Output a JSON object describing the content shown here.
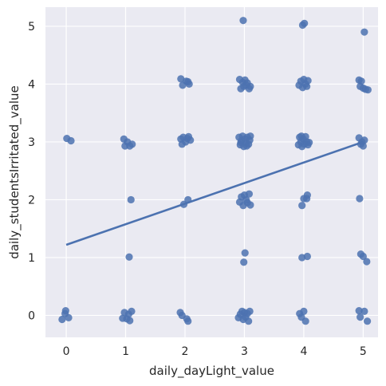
{
  "chart_data": {
    "type": "scatter",
    "xlabel": "daily_dayLight_value",
    "ylabel": "daily_studentsIrritated_value",
    "xlim": [
      -0.35,
      5.25
    ],
    "ylim": [
      -0.38,
      5.33
    ],
    "x_ticks": [
      "0",
      "1",
      "2",
      "3",
      "4",
      "5"
    ],
    "y_ticks": [
      "0",
      "1",
      "2",
      "3",
      "4",
      "5"
    ],
    "grid": true,
    "background": "#eaeaf2",
    "grid_color": "#ffffff",
    "point_color": "#4c72b0",
    "line_color": "#4c72b0",
    "regression_line": {
      "x": [
        0,
        5
      ],
      "y": [
        1.22,
        3.0
      ]
    },
    "points": [
      {
        "x": -0.07,
        "y": -0.07
      },
      {
        "x": -0.02,
        "y": 0.03
      },
      {
        "x": -0.01,
        "y": 0.08
      },
      {
        "x": 0.04,
        "y": -0.04
      },
      {
        "x": 0.01,
        "y": 3.06
      },
      {
        "x": 0.08,
        "y": 3.02
      },
      {
        "x": 0.95,
        "y": -0.05
      },
      {
        "x": 0.98,
        "y": 0.05
      },
      {
        "x": 1.02,
        "y": -0.06
      },
      {
        "x": 1.05,
        "y": 0.02
      },
      {
        "x": 1.07,
        "y": -0.09
      },
      {
        "x": 1.1,
        "y": 0.07
      },
      {
        "x": 1.06,
        "y": 1.01
      },
      {
        "x": 1.09,
        "y": 2.0
      },
      {
        "x": 0.97,
        "y": 3.05
      },
      {
        "x": 0.99,
        "y": 2.93
      },
      {
        "x": 1.03,
        "y": 3.0
      },
      {
        "x": 1.07,
        "y": 2.93
      },
      {
        "x": 1.11,
        "y": 2.96
      },
      {
        "x": 1.92,
        "y": 0.05
      },
      {
        "x": 1.95,
        "y": 0.0
      },
      {
        "x": 2.03,
        "y": -0.06
      },
      {
        "x": 2.05,
        "y": -0.1
      },
      {
        "x": 1.98,
        "y": 1.92
      },
      {
        "x": 2.05,
        "y": 2.0
      },
      {
        "x": 1.93,
        "y": 3.05
      },
      {
        "x": 1.95,
        "y": 2.96
      },
      {
        "x": 1.97,
        "y": 3.08
      },
      {
        "x": 2.01,
        "y": 3.0
      },
      {
        "x": 2.04,
        "y": 3.06
      },
      {
        "x": 2.06,
        "y": 3.09
      },
      {
        "x": 2.09,
        "y": 3.03
      },
      {
        "x": 1.93,
        "y": 4.09
      },
      {
        "x": 1.96,
        "y": 3.98
      },
      {
        "x": 2.02,
        "y": 4.05
      },
      {
        "x": 2.05,
        "y": 4.04
      },
      {
        "x": 2.07,
        "y": 4.0
      },
      {
        "x": 2.9,
        "y": -0.04
      },
      {
        "x": 2.93,
        "y": 0.02
      },
      {
        "x": 2.96,
        "y": 0.07
      },
      {
        "x": 2.98,
        "y": -0.07
      },
      {
        "x": 3.0,
        "y": 0.05
      },
      {
        "x": 3.02,
        "y": -0.03
      },
      {
        "x": 3.05,
        "y": 0.03
      },
      {
        "x": 3.07,
        "y": -0.1
      },
      {
        "x": 3.09,
        "y": 0.07
      },
      {
        "x": 2.99,
        "y": 0.92
      },
      {
        "x": 3.01,
        "y": 1.08
      },
      {
        "x": 2.92,
        "y": 1.96
      },
      {
        "x": 2.95,
        "y": 2.05
      },
      {
        "x": 2.98,
        "y": 1.9
      },
      {
        "x": 3.0,
        "y": 2.08
      },
      {
        "x": 3.03,
        "y": 2.0
      },
      {
        "x": 3.05,
        "y": 1.95
      },
      {
        "x": 3.08,
        "y": 2.1
      },
      {
        "x": 3.1,
        "y": 1.91
      },
      {
        "x": 2.91,
        "y": 3.08
      },
      {
        "x": 2.93,
        "y": 2.95
      },
      {
        "x": 2.95,
        "y": 3.02
      },
      {
        "x": 2.97,
        "y": 3.1
      },
      {
        "x": 2.99,
        "y": 2.92
      },
      {
        "x": 3.01,
        "y": 3.05
      },
      {
        "x": 3.03,
        "y": 2.98
      },
      {
        "x": 3.05,
        "y": 3.08
      },
      {
        "x": 3.07,
        "y": 2.96
      },
      {
        "x": 3.09,
        "y": 3.03
      },
      {
        "x": 3.1,
        "y": 3.1
      },
      {
        "x": 2.94,
        "y": 2.99
      },
      {
        "x": 3.04,
        "y": 2.93
      },
      {
        "x": 2.92,
        "y": 4.08
      },
      {
        "x": 2.94,
        "y": 3.92
      },
      {
        "x": 2.97,
        "y": 4.03
      },
      {
        "x": 2.99,
        "y": 3.96
      },
      {
        "x": 3.01,
        "y": 4.07
      },
      {
        "x": 3.03,
        "y": 3.98
      },
      {
        "x": 3.05,
        "y": 4.02
      },
      {
        "x": 3.08,
        "y": 3.92
      },
      {
        "x": 3.1,
        "y": 3.96
      },
      {
        "x": 2.98,
        "y": 5.1
      },
      {
        "x": 3.93,
        "y": 0.03
      },
      {
        "x": 3.96,
        "y": -0.03
      },
      {
        "x": 4.0,
        "y": 0.07
      },
      {
        "x": 4.03,
        "y": -0.1
      },
      {
        "x": 3.97,
        "y": 1.0
      },
      {
        "x": 4.06,
        "y": 1.02
      },
      {
        "x": 3.97,
        "y": 1.9
      },
      {
        "x": 4.0,
        "y": 2.02
      },
      {
        "x": 4.06,
        "y": 2.08
      },
      {
        "x": 4.05,
        "y": 2.02
      },
      {
        "x": 3.91,
        "y": 2.95
      },
      {
        "x": 3.93,
        "y": 3.08
      },
      {
        "x": 3.95,
        "y": 3.0
      },
      {
        "x": 3.97,
        "y": 2.92
      },
      {
        "x": 3.99,
        "y": 3.05
      },
      {
        "x": 4.01,
        "y": 2.96
      },
      {
        "x": 4.03,
        "y": 3.09
      },
      {
        "x": 4.05,
        "y": 3.0
      },
      {
        "x": 4.07,
        "y": 2.95
      },
      {
        "x": 4.09,
        "y": 2.99
      },
      {
        "x": 3.96,
        "y": 3.1
      },
      {
        "x": 3.92,
        "y": 3.98
      },
      {
        "x": 3.95,
        "y": 4.05
      },
      {
        "x": 3.98,
        "y": 3.94
      },
      {
        "x": 4.0,
        "y": 4.08
      },
      {
        "x": 4.03,
        "y": 4.0
      },
      {
        "x": 4.05,
        "y": 3.96
      },
      {
        "x": 4.07,
        "y": 4.06
      },
      {
        "x": 3.98,
        "y": 5.02
      },
      {
        "x": 4.01,
        "y": 5.05
      },
      {
        "x": 4.93,
        "y": 0.08
      },
      {
        "x": 4.95,
        "y": -0.03
      },
      {
        "x": 5.02,
        "y": 0.07
      },
      {
        "x": 5.07,
        "y": -0.1
      },
      {
        "x": 4.96,
        "y": 1.06
      },
      {
        "x": 5.0,
        "y": 1.02
      },
      {
        "x": 5.06,
        "y": 0.93
      },
      {
        "x": 4.94,
        "y": 2.02
      },
      {
        "x": 4.93,
        "y": 3.07
      },
      {
        "x": 4.96,
        "y": 2.96
      },
      {
        "x": 4.98,
        "y": 3.0
      },
      {
        "x": 5.0,
        "y": 2.93
      },
      {
        "x": 5.02,
        "y": 3.03
      },
      {
        "x": 4.93,
        "y": 4.07
      },
      {
        "x": 4.95,
        "y": 3.96
      },
      {
        "x": 4.97,
        "y": 4.05
      },
      {
        "x": 5.0,
        "y": 3.93
      },
      {
        "x": 5.04,
        "y": 3.91
      },
      {
        "x": 5.08,
        "y": 3.9
      },
      {
        "x": 5.02,
        "y": 4.9
      }
    ]
  }
}
